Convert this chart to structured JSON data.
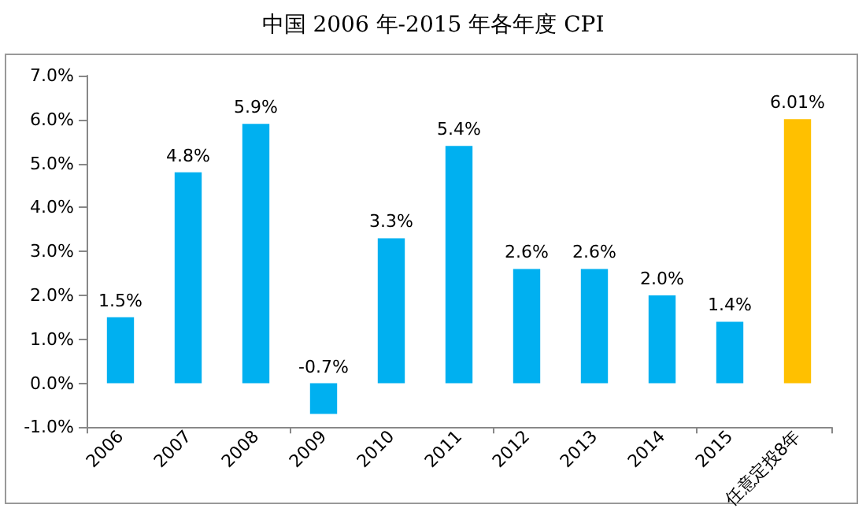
{
  "chart_data": {
    "type": "bar",
    "title": "中国 2006 年-2015 年各年度 CPI",
    "categories": [
      "2006",
      "2007",
      "2008",
      "2009",
      "2010",
      "2011",
      "2012",
      "2013",
      "2014",
      "2015",
      "任意定投8年"
    ],
    "values": [
      1.5,
      4.8,
      5.9,
      -0.7,
      3.3,
      5.4,
      2.6,
      2.6,
      2.0,
      1.4,
      6.01
    ],
    "colors": [
      "#00b0f0",
      "#00b0f0",
      "#00b0f0",
      "#00b0f0",
      "#00b0f0",
      "#00b0f0",
      "#00b0f0",
      "#00b0f0",
      "#00b0f0",
      "#00b0f0",
      "#ffc000"
    ],
    "value_labels": [
      "1.5%",
      "4.8%",
      "5.9%",
      "-0.7%",
      "3.3%",
      "5.4%",
      "2.6%",
      "2.6%",
      "2.0%",
      "1.4%",
      "6.01%"
    ],
    "ylim": [
      -1,
      7
    ],
    "yticks": [
      {
        "value": -1,
        "label": "-1.0%"
      },
      {
        "value": 0,
        "label": "0.0%"
      },
      {
        "value": 1,
        "label": "1.0%"
      },
      {
        "value": 2,
        "label": "2.0%"
      },
      {
        "value": 3,
        "label": "3.0%"
      },
      {
        "value": 4,
        "label": "4.0%"
      },
      {
        "value": 5,
        "label": "5.0%"
      },
      {
        "value": 6,
        "label": "6.0%"
      },
      {
        "value": 7,
        "label": "7.0%"
      }
    ],
    "grid": false
  }
}
